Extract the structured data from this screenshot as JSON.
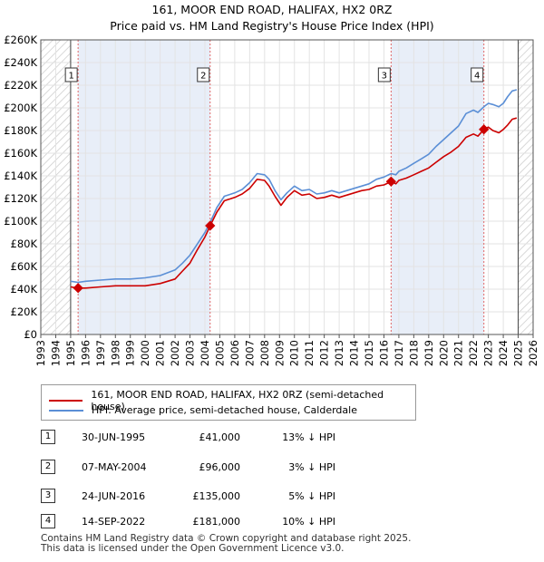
{
  "title_line1": "161, MOOR END ROAD, HALIFAX, HX2 0RZ",
  "title_line2": "Price paid vs. HM Land Registry's House Price Index (HPI)",
  "colors": {
    "property": "#cc0000",
    "hpi": "#5b8fd6",
    "shade": "#e8eef8",
    "hatch": "#cccccc",
    "marker_line": "#e06666"
  },
  "chart_data": {
    "type": "line",
    "title": "Price paid vs. HM Land Registry's House Price Index (HPI)",
    "xlim": [
      1993,
      2026
    ],
    "ylim": [
      0,
      260000
    ],
    "x_ticks": [
      1993,
      1994,
      1995,
      1996,
      1997,
      1998,
      1999,
      2000,
      2001,
      2002,
      2003,
      2004,
      2005,
      2006,
      2007,
      2008,
      2009,
      2010,
      2011,
      2012,
      2013,
      2014,
      2015,
      2016,
      2017,
      2018,
      2019,
      2020,
      2021,
      2022,
      2023,
      2024,
      2025,
      2026
    ],
    "y_ticks": [
      {
        "v": 0,
        "label": "£0"
      },
      {
        "v": 20000,
        "label": "£20K"
      },
      {
        "v": 40000,
        "label": "£40K"
      },
      {
        "v": 60000,
        "label": "£60K"
      },
      {
        "v": 80000,
        "label": "£80K"
      },
      {
        "v": 100000,
        "label": "£100K"
      },
      {
        "v": 120000,
        "label": "£120K"
      },
      {
        "v": 140000,
        "label": "£140K"
      },
      {
        "v": 160000,
        "label": "£160K"
      },
      {
        "v": 180000,
        "label": "£180K"
      },
      {
        "v": 200000,
        "label": "£200K"
      },
      {
        "v": 220000,
        "label": "£220K"
      },
      {
        "v": 240000,
        "label": "£240K"
      },
      {
        "v": 260000,
        "label": "£260K"
      }
    ],
    "hatched_before": 1995.0,
    "hatched_after": 2025.0,
    "shaded_ranges": [
      [
        1995.5,
        2004.35
      ],
      [
        2016.48,
        2022.7
      ]
    ],
    "series": [
      {
        "name": "161, MOOR END ROAD, HALIFAX, HX2 0RZ (semi-detached house)",
        "x": [
          1995.0,
          1995.5,
          1996,
          1997,
          1998,
          1999,
          2000,
          2001,
          2002,
          2002.5,
          2003,
          2003.5,
          2004,
          2004.35,
          2004.8,
          2005.3,
          2006,
          2006.5,
          2007,
          2007.5,
          2008,
          2008.3,
          2008.7,
          2009.1,
          2009.5,
          2010,
          2010.5,
          2011,
          2011.5,
          2012,
          2012.5,
          2013,
          2013.5,
          2014,
          2014.5,
          2015,
          2015.5,
          2016,
          2016.48,
          2016.8,
          2017,
          2017.5,
          2018,
          2018.5,
          2019,
          2019.5,
          2020,
          2020.5,
          2021,
          2021.5,
          2022,
          2022.3,
          2022.7,
          2023,
          2023.3,
          2023.7,
          2024,
          2024.3,
          2024.6,
          2024.9
        ],
        "y": [
          42000,
          41000,
          41000,
          42000,
          43000,
          43000,
          43000,
          45000,
          49000,
          56000,
          63000,
          75000,
          86000,
          96000,
          108000,
          118000,
          121000,
          124000,
          129000,
          137000,
          136000,
          131000,
          122000,
          114000,
          121000,
          127000,
          123000,
          124000,
          120000,
          121000,
          123000,
          121000,
          123000,
          125000,
          127000,
          128000,
          131000,
          132000,
          135000,
          133000,
          136000,
          138000,
          141000,
          144000,
          147000,
          152000,
          157000,
          161000,
          166000,
          174000,
          177000,
          175000,
          181000,
          183000,
          180000,
          178000,
          181000,
          185000,
          190000,
          191000
        ]
      },
      {
        "name": "HPI: Average price, semi-detached house, Calderdale",
        "x": [
          1995.0,
          1995.5,
          1996,
          1997,
          1998,
          1999,
          2000,
          2001,
          2002,
          2002.5,
          2003,
          2003.5,
          2004,
          2004.35,
          2004.8,
          2005.3,
          2006,
          2006.5,
          2007,
          2007.5,
          2008,
          2008.3,
          2008.7,
          2009.1,
          2009.5,
          2010,
          2010.5,
          2011,
          2011.5,
          2012,
          2012.5,
          2013,
          2013.5,
          2014,
          2014.5,
          2015,
          2015.5,
          2016,
          2016.48,
          2016.8,
          2017,
          2017.5,
          2018,
          2018.5,
          2019,
          2019.5,
          2020,
          2020.5,
          2021,
          2021.5,
          2022,
          2022.3,
          2022.7,
          2023,
          2023.3,
          2023.7,
          2024,
          2024.3,
          2024.6,
          2024.9
        ],
        "y": [
          47000,
          46000,
          47000,
          48000,
          49000,
          49000,
          50000,
          52000,
          57000,
          63000,
          70000,
          80000,
          90000,
          99000,
          112000,
          122000,
          125000,
          128000,
          134000,
          142000,
          141000,
          137000,
          127000,
          119000,
          125000,
          131000,
          127000,
          128000,
          124000,
          125000,
          127000,
          125000,
          127000,
          129000,
          131000,
          133000,
          137000,
          139000,
          142000,
          141000,
          144000,
          147000,
          151000,
          155000,
          159000,
          166000,
          172000,
          178000,
          184000,
          195000,
          198000,
          196000,
          201000,
          204000,
          203000,
          201000,
          204000,
          210000,
          215000,
          216000
        ]
      }
    ],
    "sales": [
      {
        "n": "1",
        "x": 1995.5,
        "y": 41000
      },
      {
        "n": "2",
        "x": 2004.35,
        "y": 96000
      },
      {
        "n": "3",
        "x": 2016.48,
        "y": 135000
      },
      {
        "n": "4",
        "x": 2022.7,
        "y": 181000
      }
    ]
  },
  "legend": {
    "property_label": "161, MOOR END ROAD, HALIFAX, HX2 0RZ (semi-detached house)",
    "hpi_label": "HPI: Average price, semi-detached house, Calderdale"
  },
  "sales_table": [
    {
      "n": "1",
      "date": "30-JUN-1995",
      "price": "£41,000",
      "hpi": "13% ↓ HPI"
    },
    {
      "n": "2",
      "date": "07-MAY-2004",
      "price": "£96,000",
      "hpi": "3% ↓ HPI"
    },
    {
      "n": "3",
      "date": "24-JUN-2016",
      "price": "£135,000",
      "hpi": "5% ↓ HPI"
    },
    {
      "n": "4",
      "date": "14-SEP-2022",
      "price": "£181,000",
      "hpi": "10% ↓ HPI"
    }
  ],
  "footer_line1": "Contains HM Land Registry data © Crown copyright and database right 2025.",
  "footer_line2": "This data is licensed under the Open Government Licence v3.0."
}
